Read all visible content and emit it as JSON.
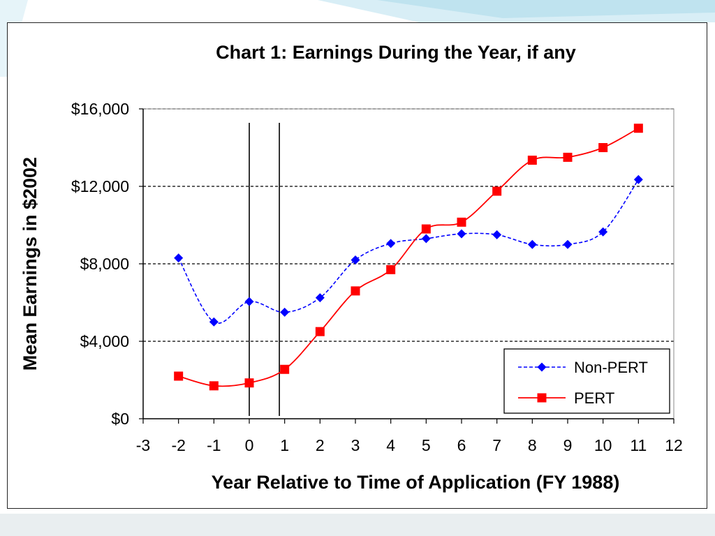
{
  "colors": {
    "non_pert": "#0000ff",
    "pert": "#ff0000",
    "grid": "#000000",
    "slide_accent": "#bfe3ef",
    "bottom_band": "#e9eef0"
  },
  "chart_data": {
    "type": "line",
    "title": "Chart 1: Earnings During the Year, if any",
    "xlabel": "Year Relative to Time of Application (FY 1988)",
    "ylabel": "Mean Earnings in $2002",
    "xlim": [
      -3,
      12
    ],
    "ylim": [
      0,
      16000
    ],
    "x_ticks": [
      "-3",
      "-2",
      "-1",
      "0",
      "1",
      "2",
      "3",
      "4",
      "5",
      "6",
      "7",
      "8",
      "9",
      "10",
      "11",
      "12"
    ],
    "y_ticks": [
      {
        "value": 0,
        "label": "$0"
      },
      {
        "value": 4000,
        "label": "$4,000"
      },
      {
        "value": 8000,
        "label": "$8,000"
      },
      {
        "value": 12000,
        "label": "$12,000"
      },
      {
        "value": 16000,
        "label": "$16,000"
      }
    ],
    "grid": "horizontal dashed",
    "reference_lines_x": [
      0,
      0.85
    ],
    "legend_position": "bottom-right",
    "series": [
      {
        "name": "Non-PERT",
        "style": "dashed",
        "marker": "diamond",
        "x": [
          -2,
          -1,
          0,
          1,
          2,
          3,
          4,
          5,
          6,
          7,
          8,
          9,
          10,
          11
        ],
        "values": [
          8300,
          5000,
          6050,
          5500,
          6250,
          8200,
          9050,
          9300,
          9550,
          9500,
          9000,
          9000,
          9650,
          12350
        ]
      },
      {
        "name": "PERT",
        "style": "solid",
        "marker": "square",
        "x": [
          -2,
          -1,
          0,
          1,
          2,
          3,
          4,
          5,
          6,
          7,
          8,
          9,
          10,
          11
        ],
        "values": [
          2200,
          1700,
          1850,
          2550,
          4500,
          6600,
          7700,
          9800,
          10150,
          11750,
          13350,
          13500,
          14000,
          15000
        ]
      }
    ]
  }
}
